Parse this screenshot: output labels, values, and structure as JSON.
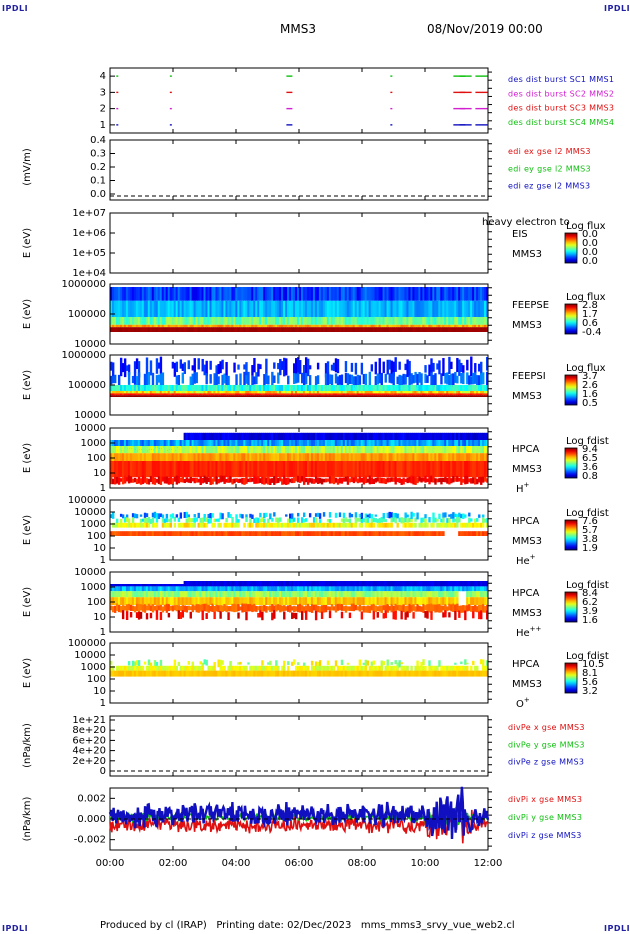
{
  "header": {
    "corner_label": "IPDLI",
    "spacecraft": "MMS3",
    "date": "08/Nov/2019 00:00"
  },
  "footer": {
    "text": "Produced by cl (IRAP)   Printing date: 02/Dec/2023   mms_mms3_srvy_vue_web2.cl"
  },
  "chart_data": {
    "type": "multi-panel time series",
    "time_axis": {
      "ticks": [
        "00:00",
        "02:00",
        "04:00",
        "06:00",
        "08:00",
        "10:00",
        "12:00"
      ],
      "range_hours": [
        0,
        12
      ]
    },
    "panels": [
      {
        "id": "burst",
        "type": "scatter",
        "ylim": [
          0.5,
          4.5
        ],
        "yticks": [
          "1",
          "2",
          "3",
          "4"
        ],
        "series": [
          {
            "name": "des dist burst SC1 MMS1",
            "color": "#1010c0",
            "level": 1,
            "hours": [
              0.2,
              1.9,
              5.6,
              8.9,
              10.9,
              11.1,
              11.6
            ]
          },
          {
            "name": "des dist burst SC2 MMS2",
            "color": "#d020d0",
            "level": 2,
            "hours": [
              0.2,
              1.9,
              5.6,
              8.9,
              10.9,
              11.1,
              11.6
            ]
          },
          {
            "name": "des dist burst SC3 MMS3",
            "color": "#e01010",
            "level": 3,
            "hours": [
              0.2,
              1.9,
              5.6,
              8.9,
              10.9,
              11.1,
              11.6
            ]
          },
          {
            "name": "des dist burst SC4 MMS4",
            "color": "#10c010",
            "level": 4,
            "hours": [
              0.2,
              1.9,
              5.6,
              8.9,
              10.9,
              11.1,
              11.6
            ]
          }
        ]
      },
      {
        "id": "edi",
        "type": "line",
        "ylabel": "(mV/m)",
        "ylim": [
          -0.02,
          0.45
        ],
        "yticks": [
          "0.4",
          "0.3",
          "0.2",
          "0.1",
          "0.0"
        ],
        "series": [
          {
            "name": "edi ex gse l2 MMS3",
            "color": "#e01010"
          },
          {
            "name": "edi ey gse l2 MMS3",
            "color": "#10c010"
          },
          {
            "name": "edi ez gse l2 MMS3",
            "color": "#1010c0"
          }
        ]
      },
      {
        "id": "eis",
        "type": "heatmap",
        "ylabel": "E (eV)",
        "yticks": [
          "1e+07",
          "1e+06",
          "1e+05",
          "1e+04"
        ],
        "instrument": "EIS",
        "sc_label": "MMS3",
        "overlay_text": "heavy electron to",
        "colorbar": {
          "title": "Log flux",
          "ticks": [
            "0.0",
            "0.0",
            "0.0",
            "0.0"
          ]
        }
      },
      {
        "id": "feepse",
        "type": "heatmap",
        "ylabel": "E (eV)",
        "yticks": [
          "1000000",
          "100000",
          "10000"
        ],
        "instrument": "FEEPSE",
        "sc_label": "MMS3",
        "colorbar": {
          "title": "Log flux",
          "ticks": [
            "2.8",
            "1.7",
            "0.6",
            "-0.4"
          ]
        }
      },
      {
        "id": "feepsi",
        "type": "heatmap",
        "ylabel": "E (eV)",
        "yticks": [
          "1000000",
          "100000",
          "10000"
        ],
        "instrument": "FEEPSI",
        "sc_label": "MMS3",
        "colorbar": {
          "title": "Log flux",
          "ticks": [
            "3.7",
            "2.6",
            "1.6",
            "0.5"
          ]
        }
      },
      {
        "id": "hpca-h",
        "type": "heatmap",
        "ylabel": "E (eV)",
        "yticks": [
          "10000",
          "1000",
          "100",
          "10",
          "1"
        ],
        "instrument": "HPCA",
        "sc_label": "MMS3",
        "species": "H",
        "charge": "+",
        "colorbar": {
          "title": "Log fdist",
          "ticks": [
            "9.4",
            "6.5",
            "3.6",
            "0.8"
          ]
        }
      },
      {
        "id": "hpca-he",
        "type": "heatmap",
        "ylabel": "E (eV)",
        "yticks": [
          "100000",
          "10000",
          "1000",
          "100",
          "10",
          "1"
        ],
        "instrument": "HPCA",
        "sc_label": "MMS3",
        "species": "He",
        "charge": "+",
        "colorbar": {
          "title": "Log fdist",
          "ticks": [
            "7.6",
            "5.7",
            "3.8",
            "1.9"
          ]
        }
      },
      {
        "id": "hpca-he2",
        "type": "heatmap",
        "ylabel": "E (eV)",
        "yticks": [
          "10000",
          "1000",
          "100",
          "10",
          "1"
        ],
        "instrument": "HPCA",
        "sc_label": "MMS3",
        "species": "He",
        "charge": "++",
        "colorbar": {
          "title": "Log fdist",
          "ticks": [
            "8.4",
            "6.2",
            "3.9",
            "1.6"
          ]
        }
      },
      {
        "id": "hpca-o",
        "type": "heatmap",
        "ylabel": "E (eV)",
        "yticks": [
          "100000",
          "10000",
          "1000",
          "100",
          "10",
          "1"
        ],
        "instrument": "HPCA",
        "sc_label": "MMS3",
        "species": "O",
        "charge": "+",
        "colorbar": {
          "title": "Log fdist",
          "ticks": [
            "10.5",
            "8.1",
            "5.6",
            "3.2"
          ]
        }
      },
      {
        "id": "divpe",
        "type": "line",
        "ylabel": "(nPa/km)",
        "yticks": [
          "1e+21",
          "8e+20",
          "6e+20",
          "4e+20",
          "2e+20",
          "0"
        ],
        "series": [
          {
            "name": "divPe x gse MMS3",
            "color": "#e01010"
          },
          {
            "name": "divPe y gse MMS3",
            "color": "#10c010"
          },
          {
            "name": "divPe z gse MMS3",
            "color": "#1010c0"
          }
        ]
      },
      {
        "id": "divpi",
        "type": "line",
        "ylabel": "(nPa/km)",
        "ylim": [
          -0.003,
          0.003
        ],
        "yticks": [
          "0.002",
          "0.000",
          "-0.002"
        ],
        "series": [
          {
            "name": "divPi x gse MMS3",
            "color": "#e01010"
          },
          {
            "name": "divPi y gse MMS3",
            "color": "#10c010"
          },
          {
            "name": "divPi z gse MMS3",
            "color": "#1010c0"
          }
        ]
      }
    ]
  }
}
